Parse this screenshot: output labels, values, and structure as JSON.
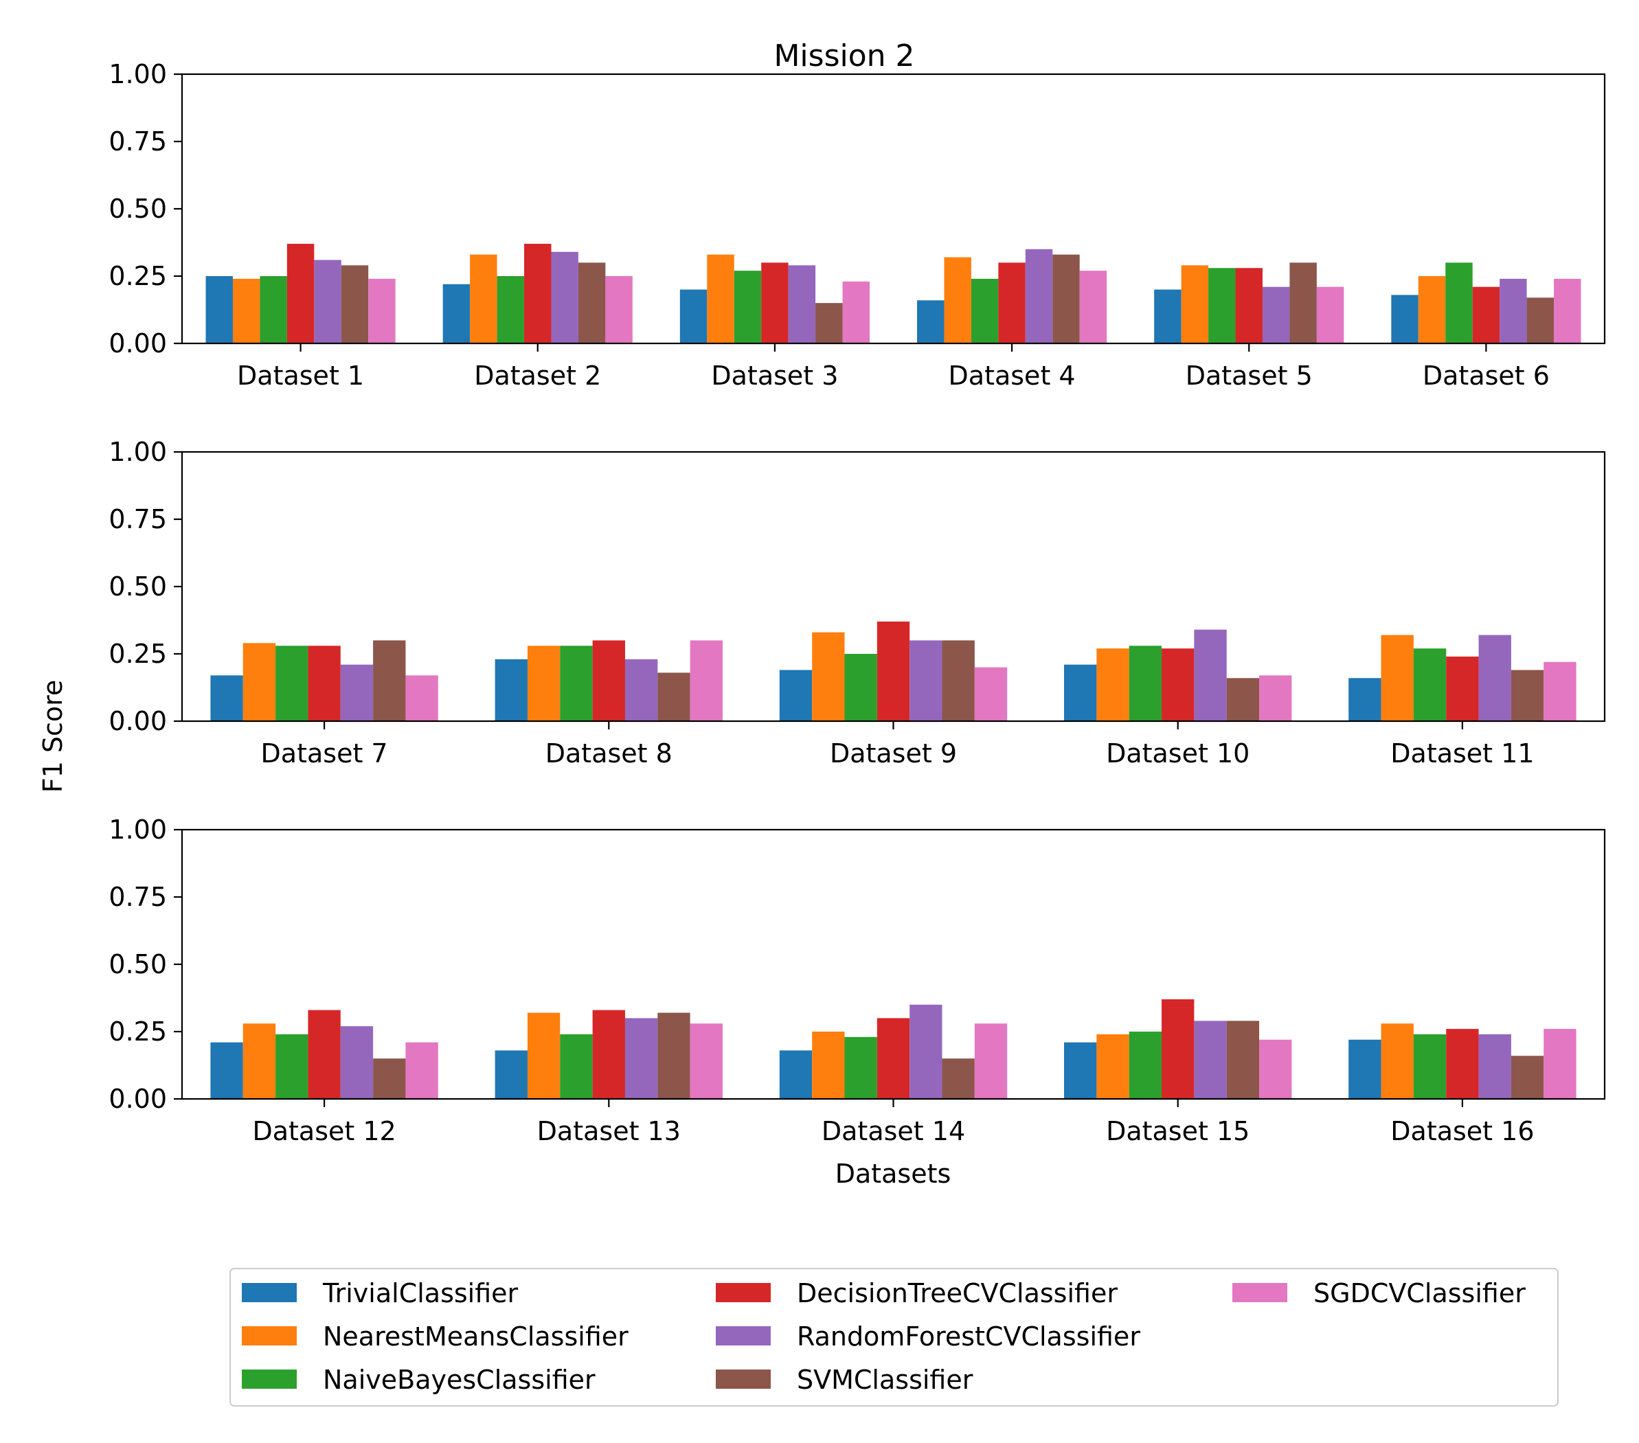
{
  "figure": {
    "title": "Mission 2",
    "ylabel": "F1 Score",
    "xlabel": "Datasets"
  },
  "legend": {
    "placement": "bottom-center",
    "columns": 3
  },
  "chart_data": [
    {
      "type": "bar",
      "title": "Mission 2",
      "xlabel": "",
      "ylabel": "F1 Score",
      "ylim": [
        0,
        1
      ],
      "yticks": [
        "0.00",
        "0.25",
        "0.50",
        "0.75",
        "1.00"
      ],
      "categories": [
        "Dataset 1",
        "Dataset 2",
        "Dataset 3",
        "Dataset 4",
        "Dataset 5",
        "Dataset 6"
      ],
      "series": [
        {
          "name": "TrivialClassifier",
          "color": "#1f77b4",
          "values": [
            0.25,
            0.22,
            0.2,
            0.16,
            0.2,
            0.18
          ]
        },
        {
          "name": "NearestMeansClassifier",
          "color": "#ff7f0e",
          "values": [
            0.24,
            0.33,
            0.33,
            0.32,
            0.29,
            0.25
          ]
        },
        {
          "name": "NaiveBayesClassifier",
          "color": "#2ca02c",
          "values": [
            0.25,
            0.25,
            0.27,
            0.24,
            0.28,
            0.3
          ]
        },
        {
          "name": "DecisionTreeCVClassifier",
          "color": "#d62728",
          "values": [
            0.37,
            0.37,
            0.3,
            0.3,
            0.28,
            0.21
          ]
        },
        {
          "name": "RandomForestCVClassifier",
          "color": "#9467bd",
          "values": [
            0.31,
            0.34,
            0.29,
            0.35,
            0.21,
            0.24
          ]
        },
        {
          "name": "SVMClassifier",
          "color": "#8c564b",
          "values": [
            0.29,
            0.3,
            0.15,
            0.33,
            0.3,
            0.17
          ]
        },
        {
          "name": "SGDCVClassifier",
          "color": "#e377c2",
          "values": [
            0.24,
            0.25,
            0.23,
            0.27,
            0.21,
            0.24
          ]
        }
      ]
    },
    {
      "type": "bar",
      "title": "",
      "xlabel": "",
      "ylabel": "F1 Score",
      "ylim": [
        0,
        1
      ],
      "yticks": [
        "0.00",
        "0.25",
        "0.50",
        "0.75",
        "1.00"
      ],
      "categories": [
        "Dataset 7",
        "Dataset 8",
        "Dataset 9",
        "Dataset 10",
        "Dataset 11"
      ],
      "series": [
        {
          "name": "TrivialClassifier",
          "color": "#1f77b4",
          "values": [
            0.17,
            0.23,
            0.19,
            0.21,
            0.16
          ]
        },
        {
          "name": "NearestMeansClassifier",
          "color": "#ff7f0e",
          "values": [
            0.29,
            0.28,
            0.33,
            0.27,
            0.32
          ]
        },
        {
          "name": "NaiveBayesClassifier",
          "color": "#2ca02c",
          "values": [
            0.28,
            0.28,
            0.25,
            0.28,
            0.27
          ]
        },
        {
          "name": "DecisionTreeCVClassifier",
          "color": "#d62728",
          "values": [
            0.28,
            0.3,
            0.37,
            0.27,
            0.24
          ]
        },
        {
          "name": "RandomForestCVClassifier",
          "color": "#9467bd",
          "values": [
            0.21,
            0.23,
            0.3,
            0.34,
            0.32
          ]
        },
        {
          "name": "SVMClassifier",
          "color": "#8c564b",
          "values": [
            0.3,
            0.18,
            0.3,
            0.16,
            0.19
          ]
        },
        {
          "name": "SGDCVClassifier",
          "color": "#e377c2",
          "values": [
            0.17,
            0.3,
            0.2,
            0.17,
            0.22
          ]
        }
      ]
    },
    {
      "type": "bar",
      "title": "",
      "xlabel": "Datasets",
      "ylabel": "F1 Score",
      "ylim": [
        0,
        1
      ],
      "yticks": [
        "0.00",
        "0.25",
        "0.50",
        "0.75",
        "1.00"
      ],
      "categories": [
        "Dataset 12",
        "Dataset 13",
        "Dataset 14",
        "Dataset 15",
        "Dataset 16"
      ],
      "series": [
        {
          "name": "TrivialClassifier",
          "color": "#1f77b4",
          "values": [
            0.21,
            0.18,
            0.18,
            0.21,
            0.22
          ]
        },
        {
          "name": "NearestMeansClassifier",
          "color": "#ff7f0e",
          "values": [
            0.28,
            0.32,
            0.25,
            0.24,
            0.28
          ]
        },
        {
          "name": "NaiveBayesClassifier",
          "color": "#2ca02c",
          "values": [
            0.24,
            0.24,
            0.23,
            0.25,
            0.24
          ]
        },
        {
          "name": "DecisionTreeCVClassifier",
          "color": "#d62728",
          "values": [
            0.33,
            0.33,
            0.3,
            0.37,
            0.26
          ]
        },
        {
          "name": "RandomForestCVClassifier",
          "color": "#9467bd",
          "values": [
            0.27,
            0.3,
            0.35,
            0.29,
            0.24
          ]
        },
        {
          "name": "SVMClassifier",
          "color": "#8c564b",
          "values": [
            0.15,
            0.32,
            0.15,
            0.29,
            0.16
          ]
        },
        {
          "name": "SGDCVClassifier",
          "color": "#e377c2",
          "values": [
            0.21,
            0.28,
            0.28,
            0.22,
            0.26
          ]
        }
      ]
    }
  ]
}
